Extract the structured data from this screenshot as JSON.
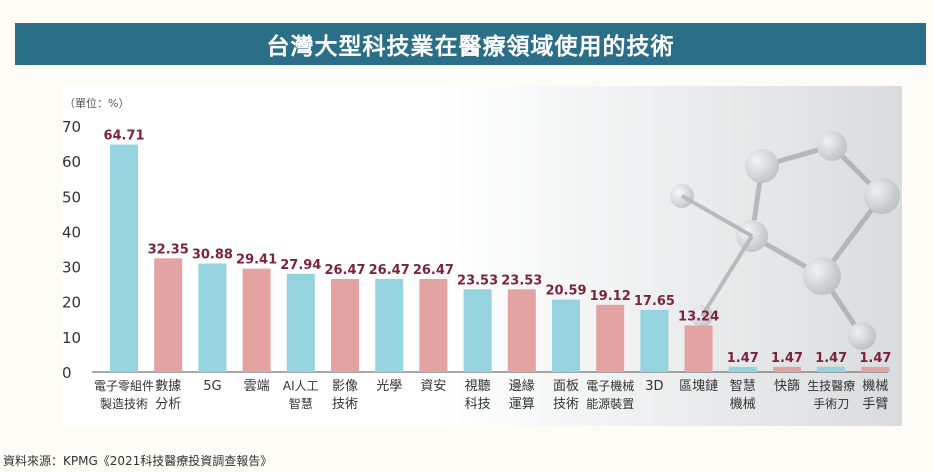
{
  "header": {
    "title": "台灣大型科技業在醫療領域使用的技術"
  },
  "unit_label": "（單位：%）",
  "source": "資料來源：KPMG《2021科技醫療投資調查報告》",
  "colors": {
    "blue": "#95d3de",
    "pink": "#e3a3a2",
    "value_text": "#7b2440",
    "title_bg": "#2a6e87"
  },
  "chart_data": {
    "type": "bar",
    "title": "台灣大型科技業在醫療領域使用的技術",
    "ylim": [
      0,
      70
    ],
    "yticks": [
      0,
      10,
      20,
      30,
      40,
      50,
      60,
      70
    ],
    "categories": [
      [
        "電子零組件",
        "製造技術"
      ],
      [
        "數據",
        "分析"
      ],
      [
        "5G"
      ],
      [
        "雲端"
      ],
      [
        "AI人工",
        "智慧"
      ],
      [
        "影像",
        "技術"
      ],
      [
        "光學"
      ],
      [
        "資安"
      ],
      [
        "視聽",
        "科技"
      ],
      [
        "邊緣",
        "運算"
      ],
      [
        "面板",
        "技術"
      ],
      [
        "電子機械",
        "能源裝置"
      ],
      [
        "3D"
      ],
      [
        "區塊鏈"
      ],
      [
        "智慧",
        "機械"
      ],
      [
        "快篩"
      ],
      [
        "生技醫療",
        "手術刀"
      ],
      [
        "機械",
        "手臂"
      ]
    ],
    "values": [
      64.71,
      32.35,
      30.88,
      29.41,
      27.94,
      26.47,
      26.47,
      26.47,
      23.53,
      23.53,
      20.59,
      19.12,
      17.65,
      13.24,
      1.47,
      1.47,
      1.47,
      1.47
    ],
    "value_labels": [
      "64.71",
      "32.35",
      "30.88",
      "29.41",
      "27.94",
      "26.47",
      "26.47",
      "26.47",
      "23.53",
      "23.53",
      "20.59",
      "19.12",
      "17.65",
      "13.24",
      "1.47",
      "1.47",
      "1.47",
      "1.47"
    ],
    "bar_colors": [
      "blue",
      "pink",
      "blue",
      "pink",
      "blue",
      "pink",
      "blue",
      "pink",
      "blue",
      "pink",
      "blue",
      "pink",
      "blue",
      "pink",
      "blue",
      "pink",
      "blue",
      "pink"
    ]
  }
}
